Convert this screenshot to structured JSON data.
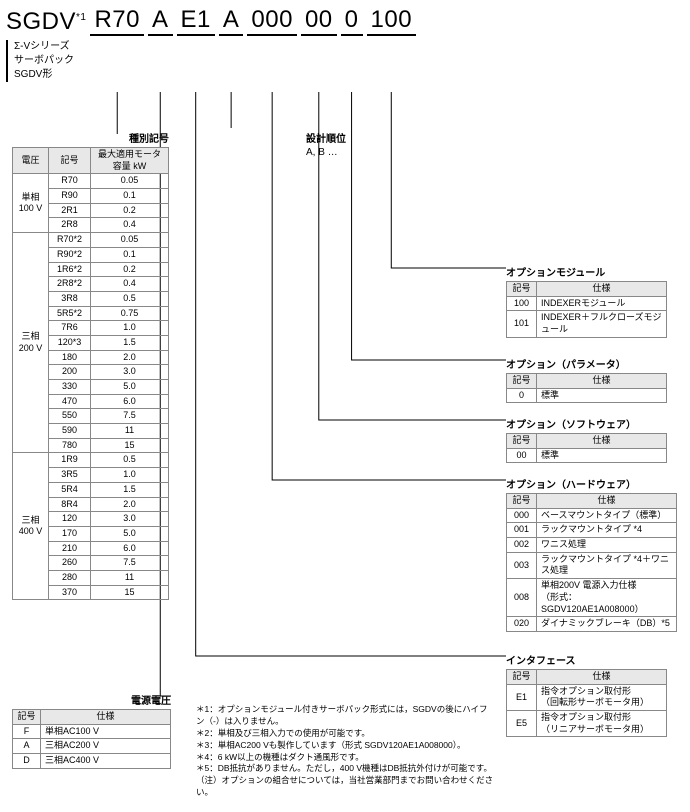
{
  "model": {
    "prefix": "SGDV",
    "sup": "*1",
    "segments": [
      "R70",
      "A",
      "E1",
      "A",
      "000",
      "00",
      "0",
      "100"
    ]
  },
  "series": [
    "Σ-Vシリーズ",
    "サーボパック",
    "SGDV形"
  ],
  "type_table": {
    "title": "種別記号",
    "headers": [
      "電圧",
      "記号",
      "最大適用モータ容量 kW"
    ],
    "groups": [
      {
        "voltage": "単相\n100 V",
        "rows": [
          [
            "R70",
            "0.05"
          ],
          [
            "R90",
            "0.1"
          ],
          [
            "2R1",
            "0.2"
          ],
          [
            "2R8",
            "0.4"
          ]
        ]
      },
      {
        "voltage": "三相\n200 V",
        "rows": [
          [
            "R70*2",
            "0.05"
          ],
          [
            "R90*2",
            "0.1"
          ],
          [
            "1R6*2",
            "0.2"
          ],
          [
            "2R8*2",
            "0.4"
          ],
          [
            "3R8",
            "0.5"
          ],
          [
            "5R5*2",
            "0.75"
          ],
          [
            "7R6",
            "1.0"
          ],
          [
            "120*3",
            "1.5"
          ],
          [
            "180",
            "2.0"
          ],
          [
            "200",
            "3.0"
          ],
          [
            "330",
            "5.0"
          ],
          [
            "470",
            "6.0"
          ],
          [
            "550",
            "7.5"
          ],
          [
            "590",
            "11"
          ],
          [
            "780",
            "15"
          ]
        ]
      },
      {
        "voltage": "三相\n400 V",
        "rows": [
          [
            "1R9",
            "0.5"
          ],
          [
            "3R5",
            "1.0"
          ],
          [
            "5R4",
            "1.5"
          ],
          [
            "8R4",
            "2.0"
          ],
          [
            "120",
            "3.0"
          ],
          [
            "170",
            "5.0"
          ],
          [
            "210",
            "6.0"
          ],
          [
            "260",
            "7.5"
          ],
          [
            "280",
            "11"
          ],
          [
            "370",
            "15"
          ]
        ]
      }
    ]
  },
  "design": {
    "title": "設計順位",
    "sub": "A, B …"
  },
  "power_table": {
    "title": "電源電圧",
    "headers": [
      "記号",
      "仕様"
    ],
    "rows": [
      [
        "F",
        "単相AC100 V"
      ],
      [
        "A",
        "三相AC200 V"
      ],
      [
        "D",
        "三相AC400 V"
      ]
    ]
  },
  "option_module": {
    "title": "オプションモジュール",
    "headers": [
      "記号",
      "仕様"
    ],
    "rows": [
      [
        "100",
        "INDEXERモジュール"
      ],
      [
        "101",
        "INDEXER＋フルクローズモジュール"
      ]
    ]
  },
  "option_param": {
    "title": "オプション（パラメータ）",
    "headers": [
      "記号",
      "仕様"
    ],
    "rows": [
      [
        "0",
        "標準"
      ]
    ]
  },
  "option_soft": {
    "title": "オプション（ソフトウェア）",
    "headers": [
      "記号",
      "仕様"
    ],
    "rows": [
      [
        "00",
        "標準"
      ]
    ]
  },
  "option_hard": {
    "title": "オプション（ハードウェア）",
    "headers": [
      "記号",
      "仕様"
    ],
    "rows": [
      [
        "000",
        "ベースマウントタイプ（標準）"
      ],
      [
        "001",
        "ラックマウントタイプ *4"
      ],
      [
        "002",
        "ワニス処理"
      ],
      [
        "003",
        "ラックマウントタイプ *4＋ワニス処理"
      ],
      [
        "008",
        "単相200V 電源入力仕様\n（形式：SGDV120AE1A008000）"
      ],
      [
        "020",
        "ダイナミックブレーキ（DB）*5"
      ]
    ]
  },
  "interface": {
    "title": "インタフェース",
    "headers": [
      "記号",
      "仕様"
    ],
    "rows": [
      [
        "E1",
        "指令オプション取付形\n（回転形サーボモータ用）"
      ],
      [
        "E5",
        "指令オプション取付形\n（リニアサーボモータ用）"
      ]
    ]
  },
  "notes": [
    "＊1：オプションモジュール付きサーボパック形式には，SGDVの後にハイフン（-）は入りません。",
    "＊2：単相及び三相入力での使用が可能です。",
    "＊3：単相AC200 Vも製作しています（形式 SGDV120AE1A008000）。",
    "＊4：6 kW以上の機種はダクト通風形です。",
    "＊5：DB抵抗がありません。ただし，400 V機種はDB抵抗外付けが可能です。",
    "（注）オプションの組合せについては，当社営業部門までお問い合わせください。"
  ],
  "style": {
    "line_color": "#000",
    "line_width": 1,
    "header_bg": "#e8e8e8",
    "border_color": "#888"
  }
}
